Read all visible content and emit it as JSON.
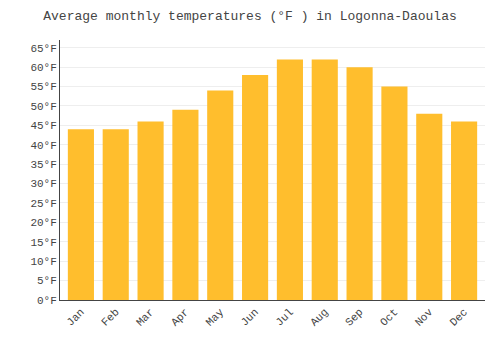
{
  "chart_data": {
    "type": "bar",
    "title": "Average monthly temperatures (°F ) in Logonna-Daoulas",
    "categories": [
      "Jan",
      "Feb",
      "Mar",
      "Apr",
      "May",
      "Jun",
      "Jul",
      "Aug",
      "Sep",
      "Oct",
      "Nov",
      "Dec"
    ],
    "values": [
      44,
      44,
      46,
      49,
      54,
      58,
      62,
      62,
      60,
      55,
      48,
      46
    ],
    "color": "#FFBE2D",
    "ylim": [
      0,
      67
    ],
    "yticks": [
      {
        "value": 0,
        "label": "0°F"
      },
      {
        "value": 5,
        "label": "5°F"
      },
      {
        "value": 10,
        "label": "10°F"
      },
      {
        "value": 15,
        "label": "15°F"
      },
      {
        "value": 20,
        "label": "20°F"
      },
      {
        "value": 25,
        "label": "25°F"
      },
      {
        "value": 30,
        "label": "30°F"
      },
      {
        "value": 35,
        "label": "35°F"
      },
      {
        "value": 40,
        "label": "40°F"
      },
      {
        "value": 45,
        "label": "45°F"
      },
      {
        "value": 50,
        "label": "50°F"
      },
      {
        "value": 55,
        "label": "55°F"
      },
      {
        "value": 60,
        "label": "60°F"
      },
      {
        "value": 65,
        "label": "65°F"
      }
    ],
    "grid": true
  }
}
